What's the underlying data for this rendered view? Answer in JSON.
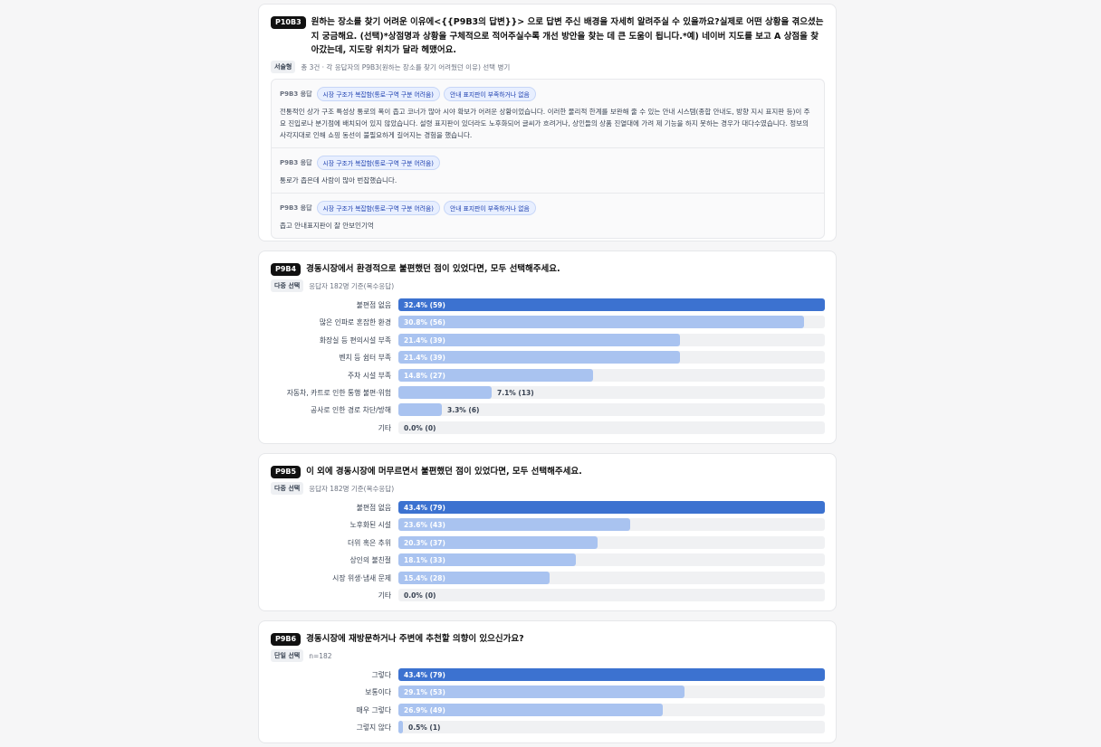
{
  "p10b3": {
    "code": "P10B3",
    "title": "원하는 장소를 찾기 어려운 이유에<{{P9B3의 답변}}> 으로 답변 주신 배경을 자세히 알려주실 수 있을까요?실제로 어떤 상황을 겪으셨는지 궁금해요. (선택)*상점명과 상황을 구체적으로 적어주실수록 개선 방안을 찾는 데 큰 도움이 됩니다.*예) 네이버 지도를 보고 A 상점을 찾아갔는데, 지도랑 위치가 달라 헤맸어요.",
    "type_tag": "서술형",
    "meta": "총 3건 · 각 응답자의 P9B3(원하는 장소를 찾기 어려웠던 이유) 선택 병기",
    "responses": [
      {
        "label": "P9B3 응답",
        "chips": [
          "시장 구조가 복잡함(통로·구역 구분 어려움)",
          "안내 표지판이 부족하거나 없음"
        ],
        "text": "전통적인 상가 구조 특성상 통로의 폭이 좁고 코너가 많아 시야 확보가 어려운 상황이었습니다. 이러한 물리적 한계를 보완해 줄 수 있는 안내 시스템(종합 안내도, 방향 지시 표지판 등)이 주요 진입로나 분기점에 배치되어 있지 않았습니다. 설령 표지판이 있더라도 노후화되어 글씨가 흐려거나, 상인들의 상품 진열대에 가려 제 기능을 하지 못하는 경우가 대다수였습니다. 정보의 사각지대로 인해 쇼핑 동선이 불필요하게 길어지는 경험을 했습니다."
      },
      {
        "label": "P9B3 응답",
        "chips": [
          "시장 구조가 복잡함(통로·구역 구분 어려움)"
        ],
        "text": "통로가 좁은데 사람이 많아 번잡했습니다."
      },
      {
        "label": "P9B3 응답",
        "chips": [
          "시장 구조가 복잡함(통로·구역 구분 어려움)",
          "안내 표지판이 부족하거나 없음"
        ],
        "text": "좁고 안내표지판이 잘 안보인기억"
      }
    ]
  },
  "chart_data": [
    {
      "type": "bar",
      "code": "P9B4",
      "title": "경동시장에서 환경적으로 불편했던 점이 있었다면, 모두 선택해주세요.",
      "type_tag": "다중 선택",
      "meta": "응답자 182명 기준(복수응답)",
      "categories": [
        "불편점 없음",
        "많은 인파로 혼잡한 환경",
        "화장실 등 편의시설 부족",
        "벤치 등 쉼터 부족",
        "주차 시설 부족",
        "자동차, 카트로 인한 통행 불편·위험",
        "공사로 인한 경로 차단/방해",
        "기타"
      ],
      "values": [
        32.4,
        30.8,
        21.4,
        21.4,
        14.8,
        7.1,
        3.3,
        0.0
      ],
      "counts": [
        59,
        56,
        39,
        39,
        27,
        13,
        6,
        0
      ],
      "value_labels": [
        "32.4% (59)",
        "30.8% (56)",
        "21.4% (39)",
        "21.4% (39)",
        "14.8% (27)",
        "7.1% (13)",
        "3.3% (6)",
        "0.0% (0)"
      ]
    },
    {
      "type": "bar",
      "code": "P9B5",
      "title": "이 외에 경동시장에 머무르면서 불편했던 점이 있었다면, 모두 선택해주세요.",
      "type_tag": "다중 선택",
      "meta": "응답자 182명 기준(복수응답)",
      "categories": [
        "불편점 없음",
        "노후화된 시설",
        "더위 혹은 추위",
        "상인의 불친절",
        "시장 위생·냄새 문제",
        "기타"
      ],
      "values": [
        43.4,
        23.6,
        20.3,
        18.1,
        15.4,
        0.0
      ],
      "counts": [
        79,
        43,
        37,
        33,
        28,
        0
      ],
      "value_labels": [
        "43.4% (79)",
        "23.6% (43)",
        "20.3% (37)",
        "18.1% (33)",
        "15.4% (28)",
        "0.0% (0)"
      ]
    },
    {
      "type": "bar",
      "code": "P9B6",
      "title": "경동시장에 재방문하거나 주변에 추천할 의향이 있으신가요?",
      "type_tag": "단일 선택",
      "meta": "n=182",
      "categories": [
        "그렇다",
        "보통이다",
        "매우 그렇다",
        "그렇지 않다"
      ],
      "values": [
        43.4,
        29.1,
        26.9,
        0.5
      ],
      "counts": [
        79,
        53,
        49,
        1
      ],
      "value_labels": [
        "43.4% (79)",
        "29.1% (53)",
        "26.9% (49)",
        "0.5% (1)"
      ]
    }
  ],
  "colors": {
    "top_bar": "#3c72d0",
    "bar": "#a9c3f0",
    "track": "#f0f1f3",
    "chip_text": "#1e40af"
  }
}
